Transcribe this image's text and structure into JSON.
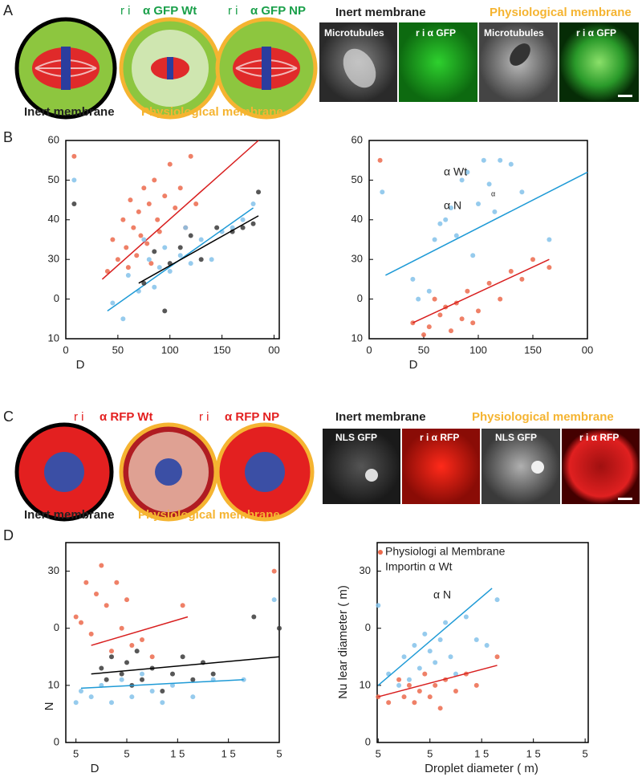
{
  "panel_labels": [
    "A",
    "B",
    "C",
    "D"
  ],
  "panel_a": {
    "conditions": [
      {
        "prefix": "r i",
        "name": "α GFP Wt"
      },
      {
        "prefix": "r i",
        "name": "α GFP NP"
      }
    ],
    "membranes": [
      "Inert membrane",
      "Physiological membrane"
    ],
    "image_headers": [
      "Inert membrane",
      "Physiological membrane"
    ],
    "image_labels": [
      "Microtubules",
      "r i  α GFP",
      "Microtubules",
      "r i  α GFP"
    ]
  },
  "panel_c": {
    "conditions": [
      {
        "prefix": "r i",
        "name": "α RFP Wt"
      },
      {
        "prefix": "r i",
        "name": "α RFP NP"
      }
    ],
    "membranes": [
      "Inert membrane",
      "Physiological membrane"
    ],
    "image_headers": [
      "Inert membrane",
      "Physiological membrane"
    ],
    "image_labels": [
      "NLS GFP",
      "r i  α RFP",
      "NLS GFP",
      "r i  α RFP"
    ]
  },
  "chart_data": [
    {
      "type": "scatter",
      "xlabel": "D",
      "xlim": [
        0,
        205
      ],
      "ylim": [
        10,
        60
      ],
      "xticks": [
        0,
        50,
        100,
        150,
        {
          "value": 200,
          "label": "00"
        }
      ],
      "yticks": [
        10,
        {
          "value": 20,
          "label": "0"
        },
        30,
        40,
        50,
        60
      ],
      "series": [
        {
          "color": "#ec6a4c",
          "x": [
            8,
            40,
            45,
            50,
            55,
            58,
            60,
            62,
            65,
            68,
            70,
            72,
            75,
            78,
            80,
            82,
            85,
            88,
            90,
            95,
            100,
            105,
            110,
            115,
            120,
            125
          ],
          "values": [
            56,
            27,
            35,
            30,
            40,
            33,
            28,
            45,
            38,
            31,
            42,
            36,
            48,
            34,
            44,
            29,
            50,
            40,
            37,
            46,
            54,
            43,
            48,
            38,
            56,
            44
          ],
          "fit_x": [
            35,
            185
          ],
          "fit_values": [
            25,
            60
          ]
        },
        {
          "color": "#84c2ea",
          "x": [
            8,
            45,
            55,
            60,
            70,
            75,
            80,
            85,
            90,
            95,
            100,
            110,
            115,
            120,
            130,
            140,
            150,
            160,
            170,
            180
          ],
          "values": [
            50,
            19,
            15,
            26,
            22,
            35,
            30,
            23,
            28,
            33,
            27,
            31,
            38,
            29,
            35,
            30,
            37,
            38,
            40,
            44
          ],
          "fit_x": [
            40,
            180
          ],
          "fit_values": [
            17,
            43
          ]
        },
        {
          "color": "#3a3a3a",
          "x": [
            8,
            75,
            85,
            95,
            100,
            110,
            120,
            130,
            145,
            160,
            170,
            180,
            185
          ],
          "values": [
            44,
            24,
            32,
            17,
            29,
            33,
            36,
            30,
            38,
            37,
            38,
            39,
            47
          ],
          "fit_x": [
            70,
            185
          ],
          "fit_values": [
            24,
            41
          ]
        }
      ]
    },
    {
      "type": "scatter",
      "xlabel": "D",
      "xlim": [
        0,
        200
      ],
      "ylim": [
        10,
        60
      ],
      "xticks": [
        0,
        50,
        100,
        150,
        {
          "value": 200,
          "label": "00"
        }
      ],
      "yticks": [
        10,
        {
          "value": 20,
          "label": "0"
        },
        30,
        40,
        50,
        60
      ],
      "annotations": [
        "α Wt",
        "α N",
        "α"
      ],
      "series": [
        {
          "color": "#84c2ea",
          "x": [
            12,
            40,
            45,
            55,
            60,
            65,
            70,
            75,
            80,
            85,
            90,
            95,
            100,
            105,
            110,
            115,
            120,
            130,
            140,
            165
          ],
          "values": [
            47,
            25,
            20,
            22,
            35,
            39,
            40,
            43,
            36,
            50,
            52,
            31,
            44,
            55,
            49,
            42,
            55,
            54,
            47,
            35
          ],
          "fit_x": [
            15,
            200
          ],
          "fit_values": [
            26,
            52
          ]
        },
        {
          "color": "#ec6a4c",
          "x": [
            10,
            40,
            50,
            55,
            60,
            65,
            70,
            75,
            80,
            85,
            90,
            95,
            100,
            110,
            120,
            130,
            140,
            150,
            165
          ],
          "values": [
            55,
            14,
            11,
            13,
            20,
            16,
            18,
            12,
            19,
            15,
            22,
            14,
            17,
            24,
            20,
            27,
            25,
            30,
            28
          ],
          "fit_x": [
            40,
            165
          ],
          "fit_values": [
            14,
            30
          ]
        }
      ]
    },
    {
      "type": "scatter",
      "xlabel": "D",
      "ylabel": "N",
      "xlim": [
        15,
        225
      ],
      "ylim": [
        0,
        35
      ],
      "xticks": [
        {
          "value": 25,
          "label": "5"
        },
        {
          "value": 75,
          "label": "5"
        },
        {
          "value": 125,
          "label": "1 5"
        },
        {
          "value": 175,
          "label": "1 5"
        },
        {
          "value": 225,
          "label": "5"
        }
      ],
      "yticks": [
        0,
        10,
        {
          "value": 20,
          "label": "0"
        },
        30
      ],
      "series": [
        {
          "color": "#ec6a4c",
          "x": [
            25,
            30,
            35,
            40,
            45,
            50,
            55,
            60,
            65,
            70,
            75,
            80,
            90,
            100,
            130,
            220
          ],
          "values": [
            22,
            21,
            28,
            19,
            26,
            31,
            24,
            16,
            28,
            20,
            25,
            17,
            18,
            15,
            24,
            30
          ],
          "fit_x": [
            40,
            135
          ],
          "fit_values": [
            17,
            22
          ]
        },
        {
          "color": "#3a3a3a",
          "x": [
            50,
            55,
            60,
            70,
            75,
            80,
            85,
            90,
            100,
            110,
            120,
            130,
            140,
            150,
            160,
            200,
            225
          ],
          "values": [
            13,
            11,
            15,
            12,
            14,
            10,
            16,
            11,
            13,
            9,
            12,
            15,
            11,
            14,
            12,
            22,
            20
          ],
          "fit_x": [
            40,
            225
          ],
          "fit_values": [
            12,
            15
          ]
        },
        {
          "color": "#84c2ea",
          "x": [
            25,
            30,
            40,
            50,
            60,
            70,
            80,
            90,
            100,
            110,
            120,
            140,
            160,
            190,
            220
          ],
          "values": [
            7,
            9,
            8,
            10,
            7,
            11,
            8,
            12,
            9,
            7,
            10,
            8,
            11,
            11,
            25
          ],
          "fit_x": [
            30,
            190
          ],
          "fit_values": [
            9.5,
            11
          ]
        }
      ]
    },
    {
      "type": "scatter",
      "xlabel": "Droplet diameter ( m)",
      "ylabel": "Nu lear diameter ( m)",
      "xlim": [
        24,
        228
      ],
      "ylim": [
        0,
        35
      ],
      "xticks": [
        {
          "value": 25,
          "label": "5"
        },
        {
          "value": 75,
          "label": "5"
        },
        {
          "value": 125,
          "label": "1 5"
        },
        {
          "value": 175,
          "label": "1 5"
        },
        {
          "value": 225,
          "label": "5"
        }
      ],
      "yticks": [
        0,
        10,
        {
          "value": 20,
          "label": "0"
        },
        30
      ],
      "annotations": [
        "Physiologi al Membrane",
        "Importin α Wt",
        "α N"
      ],
      "series": [
        {
          "color": "#84c2ea",
          "x": [
            25,
            35,
            45,
            50,
            55,
            60,
            65,
            70,
            75,
            80,
            85,
            90,
            95,
            100,
            110,
            120,
            130,
            140
          ],
          "values": [
            24,
            12,
            10,
            15,
            11,
            17,
            13,
            19,
            16,
            14,
            18,
            21,
            15,
            12,
            22,
            18,
            17,
            25
          ],
          "fit_x": [
            25,
            135
          ],
          "fit_values": [
            10,
            27
          ]
        },
        {
          "color": "#ec6a4c",
          "x": [
            25,
            35,
            45,
            50,
            55,
            60,
            65,
            70,
            75,
            80,
            85,
            90,
            100,
            110,
            120,
            140
          ],
          "values": [
            8,
            7,
            11,
            8,
            10,
            7,
            9,
            12,
            8,
            10,
            6,
            11,
            9,
            12,
            10,
            15
          ],
          "fit_x": [
            25,
            140
          ],
          "fit_values": [
            8,
            13.5
          ]
        }
      ]
    }
  ]
}
